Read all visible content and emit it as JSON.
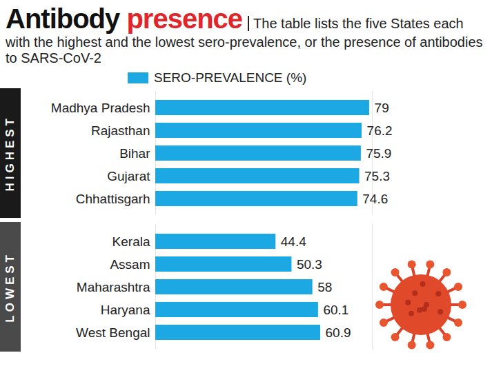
{
  "chart_data": {
    "type": "bar",
    "orientation": "horizontal",
    "title": "Antibody presence",
    "subtitle": "The table lists the five States each with the highest and the lowest sero-prevalence, or the presence of antibodies to SARS-CoV-2",
    "series": [
      {
        "name": "SERO-PREVALENCE (%)",
        "color": "#1ca8e3"
      }
    ],
    "groups": [
      {
        "name": "HIGHEST",
        "categories": [
          "Madhya Pradesh",
          "Rajasthan",
          "Bihar",
          "Gujarat",
          "Chhattisgarh"
        ],
        "values": [
          79,
          76.2,
          75.9,
          75.3,
          74.6
        ]
      },
      {
        "name": "LOWEST",
        "categories": [
          "Kerala",
          "Assam",
          "Maharashtra",
          "Haryana",
          "West Bengal"
        ],
        "values": [
          44.4,
          50.3,
          58,
          60.1,
          60.9
        ]
      }
    ],
    "xlim": [
      0,
      80
    ],
    "xticks": [],
    "data_labels": true,
    "tick_labels": "y",
    "legend": "top"
  }
}
